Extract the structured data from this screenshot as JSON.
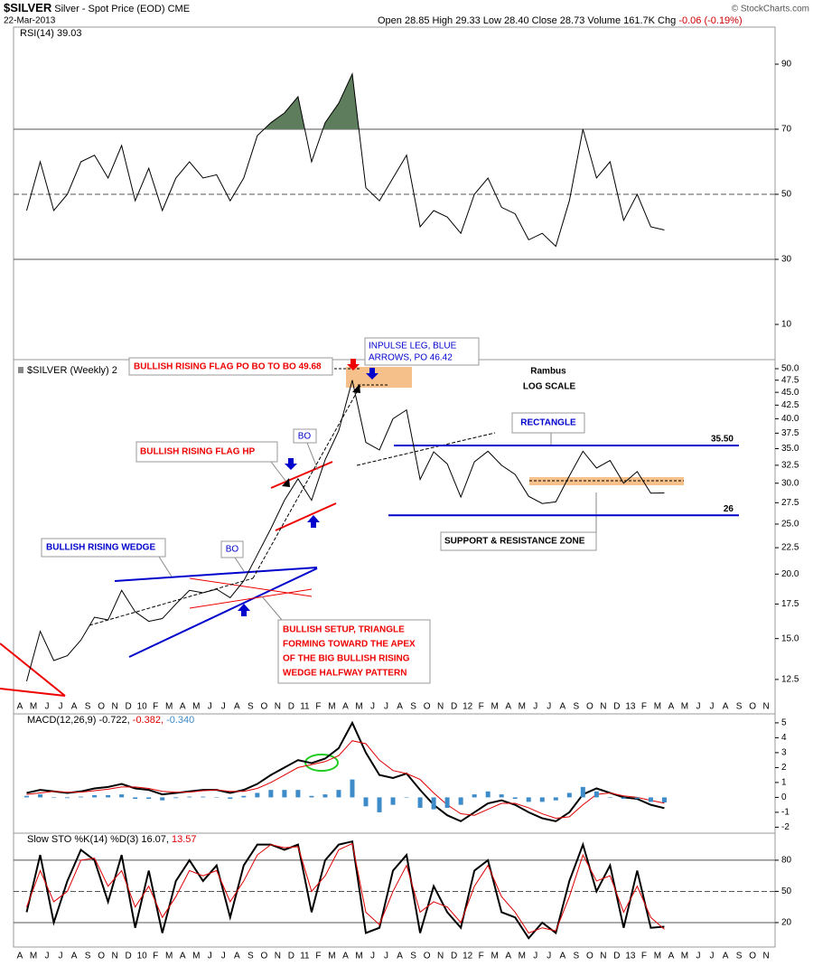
{
  "header": {
    "symbol": "$SILVER",
    "name": "Silver - Spot Price (EOD)",
    "exchange": "CME",
    "date": "22-Mar-2013",
    "quote": "Open 28.85 High 29.33 Low 28.40 Close 28.73 Volume 161.7K Chg",
    "change": "-0.06 (-0.19%)",
    "credit": "© StockCharts.com"
  },
  "chart_data": [
    {
      "type": "line",
      "title": "RSI(14) 39.03",
      "ylim": [
        0,
        100
      ],
      "yticks": [
        10,
        30,
        50,
        70,
        90
      ],
      "hlines": [
        {
          "value": 70,
          "style": "solid"
        },
        {
          "value": 50,
          "style": "dashed"
        },
        {
          "value": 30,
          "style": "solid"
        }
      ],
      "fill_above": 70,
      "fill_color": "#5d7d5d",
      "series": [
        {
          "color": "#000000",
          "values": [
            45,
            60,
            45,
            50,
            60,
            62,
            55,
            65,
            48,
            58,
            45,
            55,
            60,
            55,
            56,
            48,
            55,
            68,
            72,
            75,
            80,
            60,
            72,
            78,
            87,
            52,
            48,
            55,
            62,
            40,
            45,
            43,
            38,
            50,
            55,
            46,
            44,
            36,
            38,
            34,
            48,
            70,
            55,
            60,
            42,
            50,
            40,
            39.03,
            null,
            null,
            null,
            null,
            null,
            null,
            null,
            null
          ]
        }
      ]
    },
    {
      "type": "line",
      "title": "$SILVER (Weekly) 2",
      "log": true,
      "ylim": [
        10.72,
        52.06
      ],
      "yticks": [
        12.5,
        {
          "value": 15,
          "label": "15.0"
        },
        17.5,
        {
          "value": 20,
          "label": "20.0"
        },
        22.5,
        {
          "value": 25,
          "label": "25.0"
        },
        27.5,
        {
          "value": 30,
          "label": "30.0"
        },
        32.5,
        {
          "value": 35,
          "label": "35.0"
        },
        37.5,
        {
          "value": 40,
          "label": "40.0"
        },
        42.5,
        {
          "value": 45,
          "label": "45.0"
        },
        47.5,
        {
          "value": 50,
          "label": "50.0"
        }
      ],
      "categories": [
        "A",
        "M",
        "J",
        "J",
        "A",
        "S",
        "O",
        "N",
        "D",
        "10",
        "F",
        "M",
        "A",
        "M",
        "J",
        "J",
        "A",
        "S",
        "O",
        "N",
        "D",
        "11",
        "F",
        "M",
        "A",
        "M",
        "J",
        "J",
        "A",
        "S",
        "O",
        "N",
        "D",
        "12",
        "F",
        "M",
        "A",
        "M",
        "J",
        "J",
        "A",
        "S",
        "O",
        "N",
        "D",
        "13",
        "F",
        "M",
        "A",
        "M",
        "J",
        "J",
        "A",
        "S",
        "O",
        "N"
      ],
      "series": [
        {
          "color": "#000000",
          "values": [
            12.4,
            15.5,
            13.6,
            13.9,
            14.9,
            16.5,
            16.3,
            18.6,
            16.9,
            16.2,
            16.4,
            17.5,
            18.6,
            18.4,
            18.7,
            18.0,
            19.4,
            21.8,
            24.5,
            27.8,
            30.6,
            27.8,
            33.3,
            37.9,
            47.5,
            36.0,
            34.8,
            40.0,
            41.6,
            30.5,
            34.5,
            32.7,
            28.2,
            33.0,
            34.6,
            32.5,
            31.2,
            28.3,
            27.4,
            27.6,
            31.0,
            34.6,
            32.1,
            33.2,
            30.0,
            31.6,
            28.7,
            28.73,
            null,
            null,
            null,
            null,
            null,
            null,
            null,
            null
          ]
        }
      ],
      "levels": [
        {
          "value": 35.5,
          "label": "35.50"
        },
        {
          "value": 26,
          "label": "26"
        }
      ],
      "annotations": [
        {
          "text": "BULLISH RISING FLAG PO BO TO BO 49.68"
        },
        {
          "lines": [
            "INPULSE LEG, BLUE",
            "ARROWS, PO 46.42"
          ]
        },
        {
          "text": "Rambus"
        },
        {
          "text": "LOG SCALE"
        },
        {
          "text": "BO"
        },
        {
          "text": "BULLISH RISING FLAG HP"
        },
        {
          "text": "RECTANGLE"
        },
        {
          "text": "BULLISH RISING WEDGE"
        },
        {
          "text": "BO"
        },
        {
          "text": "SUPPORT & RESISTANCE ZONE"
        },
        {
          "lines": [
            "BULLISH SETUP, TRIANGLE",
            "FORMING TOWARD THE APEX",
            "OF THE BIG BULLISH RISING",
            "WEDGE HALFWAY PATTERN"
          ]
        }
      ]
    },
    {
      "type": "line",
      "ylim": [
        -2.4,
        5.6
      ],
      "yticks": [
        -2,
        -1,
        0,
        1,
        2,
        3,
        4,
        5
      ],
      "series": [
        {
          "name": "MACD(12,26,9) -0.722,",
          "type": "line",
          "color": "#000000",
          "width": 2,
          "values": [
            0.3,
            0.5,
            0.4,
            0.3,
            0.4,
            0.6,
            0.7,
            0.9,
            0.6,
            0.5,
            0.2,
            0.3,
            0.4,
            0.5,
            0.5,
            0.3,
            0.5,
            0.9,
            1.5,
            2.0,
            2.5,
            2.3,
            2.6,
            3.3,
            5.0,
            3.0,
            1.5,
            1.3,
            1.6,
            0.5,
            -0.5,
            -1.2,
            -1.6,
            -1.0,
            -0.4,
            -0.2,
            -0.5,
            -1.0,
            -1.4,
            -1.6,
            -1.0,
            0.2,
            0.6,
            0.3,
            0.0,
            -0.1,
            -0.5,
            -0.722,
            null,
            null,
            null,
            null,
            null,
            null,
            null,
            null
          ]
        },
        {
          "name": "-0.382,",
          "type": "line",
          "color": "#e00000",
          "width": 1,
          "values": [
            0.2,
            0.3,
            0.4,
            0.35,
            0.35,
            0.45,
            0.55,
            0.7,
            0.7,
            0.6,
            0.4,
            0.35,
            0.35,
            0.45,
            0.5,
            0.4,
            0.4,
            0.6,
            1.0,
            1.5,
            2.0,
            2.2,
            2.4,
            2.8,
            3.8,
            3.6,
            2.5,
            1.8,
            1.6,
            1.2,
            0.3,
            -0.5,
            -1.1,
            -1.2,
            -0.8,
            -0.4,
            -0.4,
            -0.7,
            -1.1,
            -1.4,
            -1.3,
            -0.5,
            0.2,
            0.3,
            0.1,
            0.0,
            -0.2,
            -0.382,
            null,
            null,
            null,
            null,
            null,
            null,
            null,
            null
          ]
        },
        {
          "name": "-0.340",
          "type": "bar",
          "color": "#3d8bc9",
          "values": [
            0.1,
            0.2,
            0.0,
            -0.05,
            0.05,
            0.15,
            0.15,
            0.2,
            -0.1,
            -0.1,
            -0.2,
            -0.05,
            0.05,
            0.05,
            0.0,
            -0.1,
            0.1,
            0.3,
            0.5,
            0.5,
            0.5,
            0.1,
            0.2,
            0.5,
            1.2,
            -0.6,
            -1.0,
            -0.5,
            0.0,
            -0.7,
            -0.8,
            -0.7,
            -0.5,
            0.2,
            0.4,
            0.2,
            -0.1,
            -0.3,
            -0.3,
            -0.2,
            0.3,
            0.7,
            0.4,
            0.0,
            -0.1,
            -0.1,
            -0.3,
            -0.34,
            null,
            null,
            null,
            null,
            null,
            null,
            null,
            null
          ]
        }
      ]
    },
    {
      "type": "line",
      "ylim": [
        -3.5,
        106
      ],
      "yticks": [
        20,
        50,
        80
      ],
      "hlines": [
        {
          "value": 80,
          "style": "solid"
        },
        {
          "value": 50,
          "style": "dashed"
        },
        {
          "value": 20,
          "style": "solid"
        }
      ],
      "categories": [
        "A",
        "M",
        "J",
        "J",
        "A",
        "S",
        "O",
        "N",
        "D",
        "10",
        "F",
        "M",
        "A",
        "M",
        "J",
        "J",
        "A",
        "S",
        "O",
        "N",
        "D",
        "11",
        "F",
        "M",
        "A",
        "M",
        "J",
        "J",
        "A",
        "S",
        "O",
        "N",
        "D",
        "12",
        "F",
        "M",
        "A",
        "M",
        "J",
        "J",
        "A",
        "S",
        "O",
        "N",
        "D",
        "13",
        "F",
        "M",
        "A",
        "M",
        "J",
        "J",
        "A",
        "S",
        "O",
        "N"
      ],
      "series": [
        {
          "name": "Slow STO %K(14) %D(3) 16.07,",
          "color": "#000000",
          "width": 2,
          "values": [
            30,
            85,
            20,
            60,
            90,
            80,
            40,
            85,
            15,
            70,
            10,
            60,
            80,
            60,
            75,
            25,
            75,
            95,
            95,
            90,
            95,
            30,
            80,
            95,
            98,
            10,
            15,
            70,
            85,
            10,
            55,
            30,
            15,
            70,
            80,
            30,
            25,
            5,
            20,
            10,
            60,
            95,
            50,
            75,
            15,
            70,
            15,
            16.07,
            null,
            null,
            null,
            null,
            null,
            null,
            null,
            null
          ]
        },
        {
          "name": "13.57",
          "color": "#e00000",
          "width": 1,
          "values": [
            35,
            70,
            40,
            50,
            80,
            82,
            55,
            70,
            35,
            55,
            25,
            45,
            70,
            65,
            70,
            40,
            60,
            85,
            95,
            92,
            93,
            50,
            65,
            90,
            96,
            30,
            18,
            50,
            75,
            30,
            40,
            35,
            20,
            55,
            75,
            45,
            30,
            10,
            15,
            12,
            45,
            85,
            60,
            65,
            30,
            55,
            25,
            13.57,
            null,
            null,
            null,
            null,
            null,
            null,
            null,
            null
          ]
        }
      ]
    }
  ]
}
